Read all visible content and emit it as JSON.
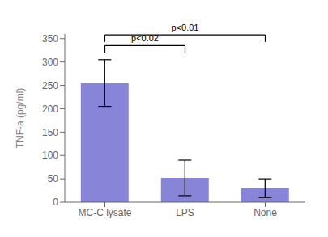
{
  "chart_data": {
    "type": "bar",
    "categories": [
      "MC-C lysate",
      "LPS",
      "None"
    ],
    "values": [
      255,
      52,
      30
    ],
    "errors": [
      50,
      38,
      20
    ],
    "color": "#8884d8",
    "ylabel": "TNF-a (pg/ml)",
    "ylim": [
      0,
      360
    ],
    "yticks": [
      0,
      50,
      100,
      150,
      200,
      250,
      300,
      350
    ],
    "grid": false,
    "annotations": [
      {
        "text": "p<0.02",
        "x1": "MC-C lysate",
        "x2": "LPS",
        "y": 335,
        "y_drop": 320
      },
      {
        "text": "p<0.01",
        "x1": "MC-C lysate",
        "x2": "None",
        "y": 358,
        "y_drop": 343
      }
    ]
  }
}
